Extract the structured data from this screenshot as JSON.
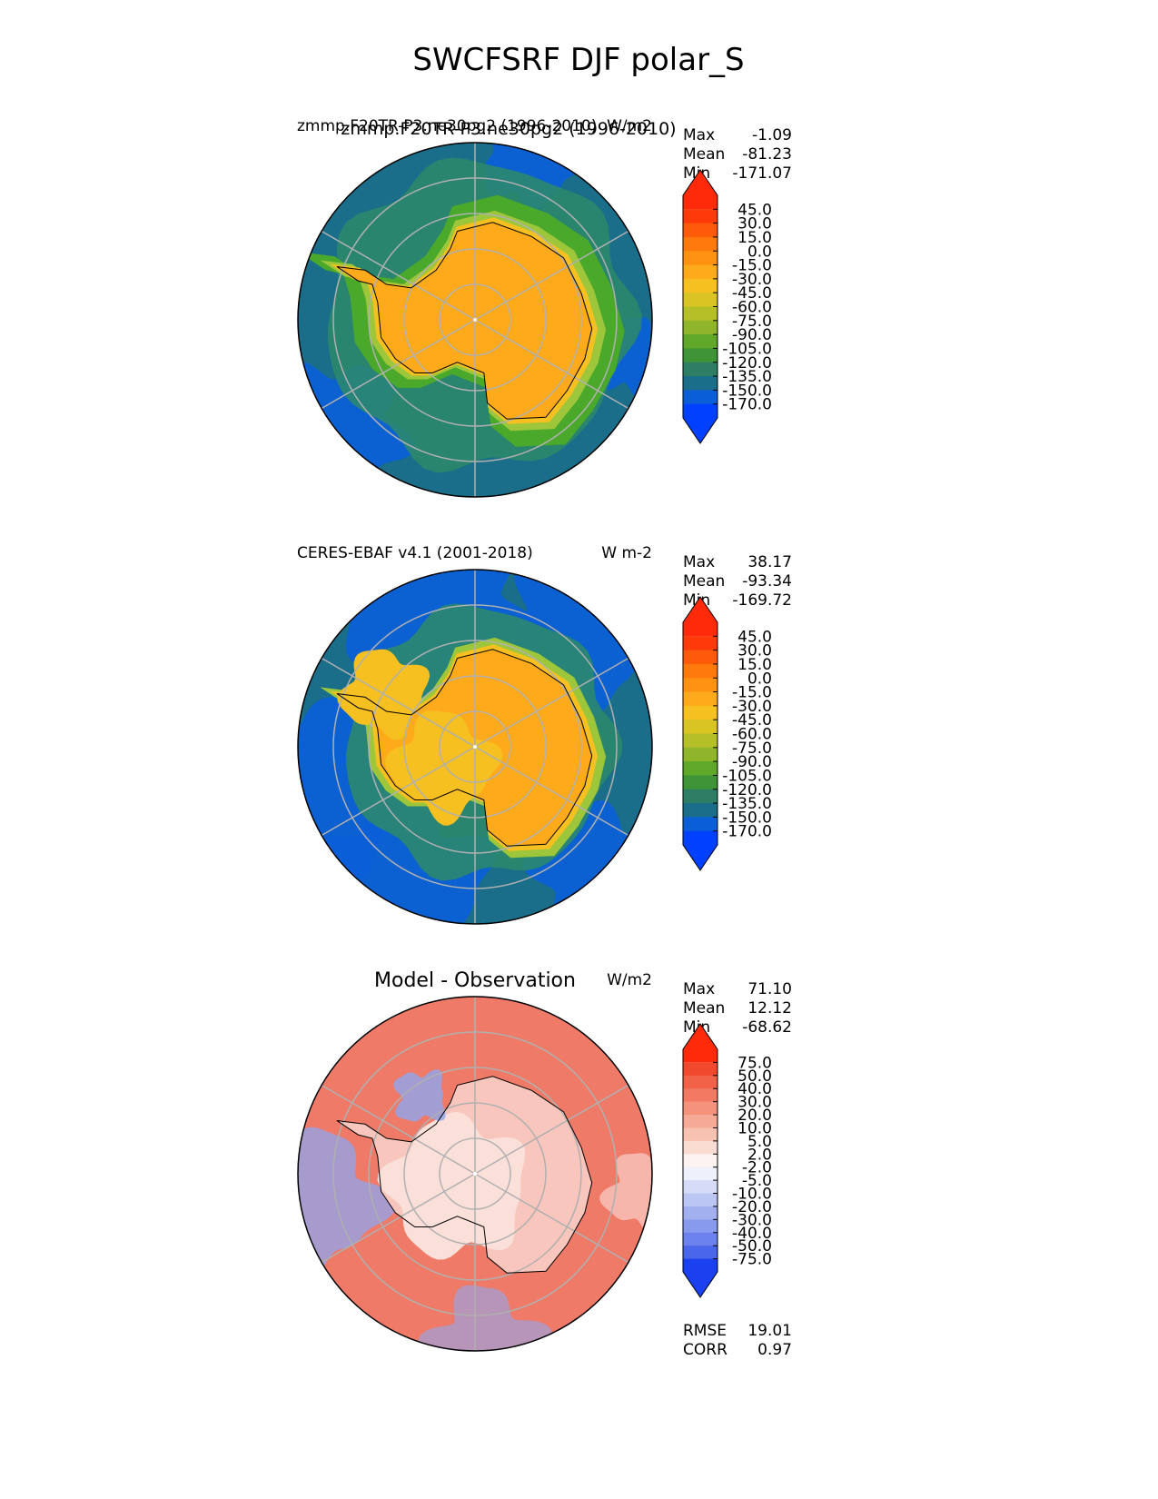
{
  "title": "SWCFSRF DJF polar_S",
  "colors": {
    "ocean_blue": "#0a5fd8",
    "ocean_teal": "#1a6e8a",
    "sea_green": "#2e8a6a",
    "green": "#4aa92a",
    "light_green": "#9ec63a",
    "yellow": "#f5c020",
    "orange": "#ffaa1a",
    "diff_red": "#f07a68",
    "diff_pink": "#f8c6bc",
    "diff_blue": "#8fa6ee"
  },
  "chart_data": [
    {
      "type": "heatmap",
      "projection": "south-polar-stereographic",
      "region": "Antarctica",
      "title_left": "zmmp.F20TR-P3.ne30pg2 (1996-2010)",
      "title_overlap": "zmmp.F20TR-P3.ne30pg2 (1996-2010)",
      "units": "W/m2",
      "stats": {
        "max_label": "Max",
        "max": "-1.09",
        "mean_label": "Mean",
        "mean": "-81.23",
        "min_label": "Min",
        "min": "-171.07"
      },
      "colorbar": {
        "labels": [
          "45.0",
          "30.0",
          "15.0",
          "0.0",
          "-15.0",
          "-30.0",
          "-45.0",
          "-60.0",
          "-75.0",
          "-90.0",
          "-105.0",
          "-120.0",
          "-135.0",
          "-150.0",
          "-170.0"
        ],
        "colors": [
          "#ff2a0a",
          "#ff3a0a",
          "#ff5a0a",
          "#ff7a0a",
          "#ff9210",
          "#ffaa1a",
          "#f5c020",
          "#d9c424",
          "#b5bf28",
          "#8fb52a",
          "#5fa82a",
          "#3e9436",
          "#2e7e66",
          "#1a6e8a",
          "#0a5fd8",
          "#0040ff"
        ],
        "extend": "both"
      }
    },
    {
      "type": "heatmap",
      "projection": "south-polar-stereographic",
      "region": "Antarctica",
      "title_left": "CERES-EBAF v4.1 (2001-2018)",
      "units": "W m-2",
      "stats": {
        "max_label": "Max",
        "max": "38.17",
        "mean_label": "Mean",
        "mean": "-93.34",
        "min_label": "Min",
        "min": "-169.72"
      },
      "colorbar": {
        "labels": [
          "45.0",
          "30.0",
          "15.0",
          "0.0",
          "-15.0",
          "-30.0",
          "-45.0",
          "-60.0",
          "-75.0",
          "-90.0",
          "-105.0",
          "-120.0",
          "-135.0",
          "-150.0",
          "-170.0"
        ],
        "colors": [
          "#ff2a0a",
          "#ff3a0a",
          "#ff5a0a",
          "#ff7a0a",
          "#ff9210",
          "#ffaa1a",
          "#f5c020",
          "#d9c424",
          "#b5bf28",
          "#8fb52a",
          "#5fa82a",
          "#3e9436",
          "#2e7e66",
          "#1a6e8a",
          "#0a5fd8",
          "#0040ff"
        ],
        "extend": "both"
      }
    },
    {
      "type": "heatmap",
      "projection": "south-polar-stereographic",
      "region": "Antarctica",
      "title_center": "Model - Observation",
      "units": "W/m2",
      "stats": {
        "max_label": "Max",
        "max": "71.10",
        "mean_label": "Mean",
        "mean": "12.12",
        "min_label": "Min",
        "min": "-68.62"
      },
      "colorbar": {
        "labels": [
          "75.0",
          "50.0",
          "40.0",
          "30.0",
          "20.0",
          "10.0",
          "5.0",
          "2.0",
          "-2.0",
          "-5.0",
          "-10.0",
          "-20.0",
          "-30.0",
          "-40.0",
          "-50.0",
          "-75.0"
        ],
        "colors": [
          "#ff2a0a",
          "#f2482e",
          "#f26248",
          "#f27a62",
          "#f4927c",
          "#f6aa96",
          "#f8c2b2",
          "#fadcd2",
          "#fdf3f0",
          "#eef0fc",
          "#d6dcf8",
          "#bcc6f4",
          "#a2b0f0",
          "#889aee",
          "#6c82ec",
          "#4a66ea",
          "#1a40f0"
        ],
        "extend": "both"
      },
      "metrics": {
        "rmse_label": "RMSE",
        "rmse": "19.01",
        "corr_label": "CORR",
        "corr": "0.97"
      }
    }
  ]
}
